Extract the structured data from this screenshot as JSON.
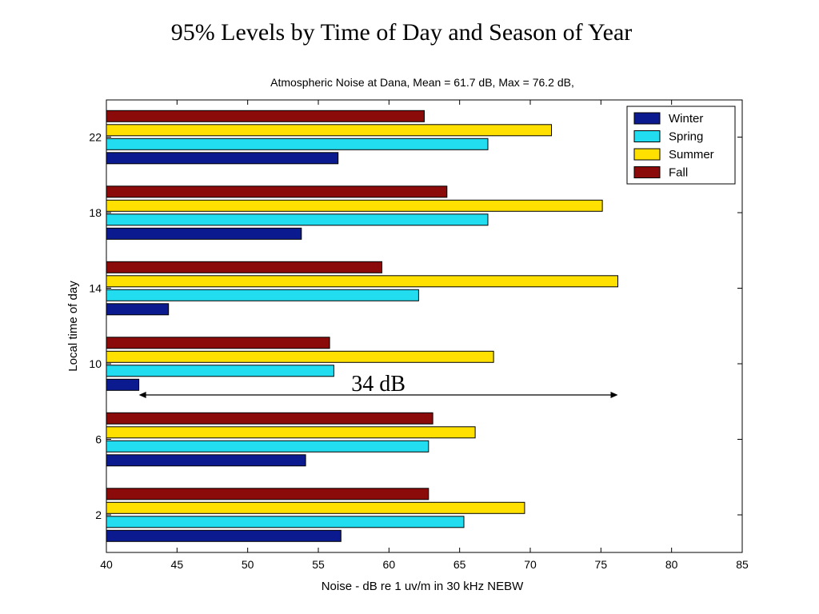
{
  "slide_title": "95% Levels by Time of Day and Season of Year",
  "chart_data": {
    "type": "bar",
    "orientation": "horizontal",
    "title": "Atmospheric Noise at Dana, Mean = 61.7 dB, Max = 76.2 dB,",
    "xlabel": "Noise - dB re 1 uv/m in 30 kHz NEBW",
    "ylabel": "Local time of day",
    "xlim": [
      40,
      85
    ],
    "xticks": [
      40,
      45,
      50,
      55,
      60,
      65,
      70,
      75,
      80,
      85
    ],
    "categories": [
      2,
      6,
      10,
      14,
      18,
      22
    ],
    "series": [
      {
        "name": "Winter",
        "color": "#0b1a8f",
        "values": [
          56.6,
          54.1,
          42.3,
          44.4,
          53.8,
          56.4
        ]
      },
      {
        "name": "Spring",
        "color": "#22dcf0",
        "values": [
          65.3,
          62.8,
          56.1,
          62.1,
          67.0,
          67.0
        ]
      },
      {
        "name": "Summer",
        "color": "#ffe000",
        "values": [
          69.6,
          66.1,
          67.4,
          76.2,
          75.1,
          71.5
        ]
      },
      {
        "name": "Fall",
        "color": "#8b0a0a",
        "values": [
          62.8,
          63.1,
          55.8,
          59.5,
          64.1,
          62.5
        ]
      }
    ],
    "legend_position": "top-right",
    "grid": false,
    "annotation": {
      "text": "34 dB",
      "x_start": 42.3,
      "x_end": 76.2
    }
  }
}
